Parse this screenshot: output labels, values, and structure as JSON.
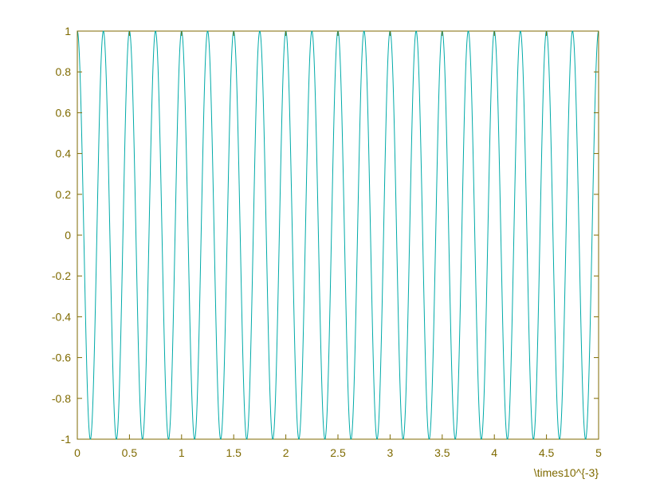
{
  "chart_data": {
    "type": "line",
    "title": "",
    "xlabel": "",
    "ylabel": "",
    "x_exponent_label": "\\times10^{-3}",
    "xlim": [
      0,
      5
    ],
    "ylim": [
      -1,
      1
    ],
    "x_ticks": [
      "0",
      "0.5",
      "1",
      "1.5",
      "2",
      "2.5",
      "3",
      "3.5",
      "4",
      "4.5",
      "5"
    ],
    "y_ticks": [
      "-1",
      "-0.8",
      "-0.6",
      "-0.4",
      "-0.2",
      "0",
      "0.2",
      "0.4",
      "0.6",
      "0.8",
      "1"
    ],
    "grid": false,
    "series": [
      {
        "function": "cos",
        "amplitude": 1,
        "frequency_hz": 4000,
        "x_unit_scale": 0.001,
        "color": "#00aaa8"
      }
    ],
    "axis_color": "#7f6a00"
  }
}
